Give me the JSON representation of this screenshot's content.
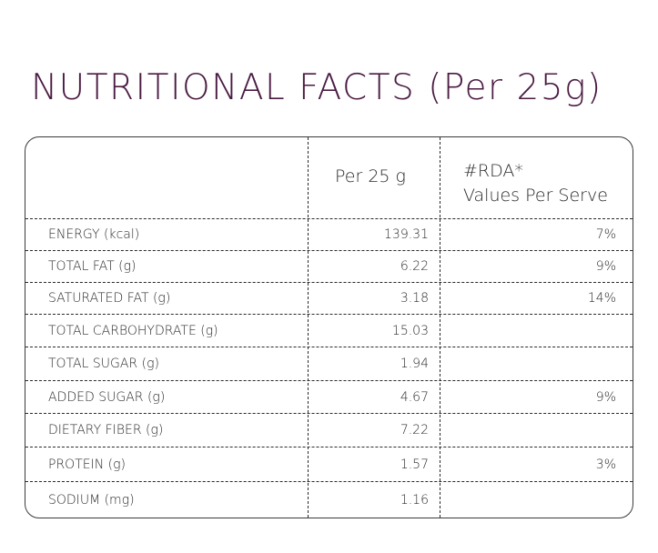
{
  "title": "NUTRITIONAL FACTS (Per 25g)",
  "header": {
    "per_label": "Per 25 g",
    "rda_line1": "#RDA*",
    "rda_line2": "Values Per Serve"
  },
  "rows": [
    {
      "name": "ENERGY (kcal)",
      "value": "139.31",
      "rda": "7%"
    },
    {
      "name": "TOTAL FAT (g)",
      "value": "6.22",
      "rda": "9%"
    },
    {
      "name": "SATURATED FAT (g)",
      "value": "3.18",
      "rda": "14%"
    },
    {
      "name": "TOTAL CARBOHYDRATE (g)",
      "value": "15.03",
      "rda": ""
    },
    {
      "name": "TOTAL SUGAR (g)",
      "value": "1.94",
      "rda": ""
    },
    {
      "name": "ADDED SUGAR (g)",
      "value": "4.67",
      "rda": "9%"
    },
    {
      "name": "DIETARY FIBER (g)",
      "value": "7.22",
      "rda": ""
    },
    {
      "name": "PROTEIN (g)",
      "value": "1.57",
      "rda": "3%"
    },
    {
      "name": "SODIUM (mg)",
      "value": "1.16",
      "rda": ""
    }
  ],
  "colors": {
    "title": "#4a1a42",
    "text": "#2a2a2a",
    "border": "#3a3a3a"
  }
}
